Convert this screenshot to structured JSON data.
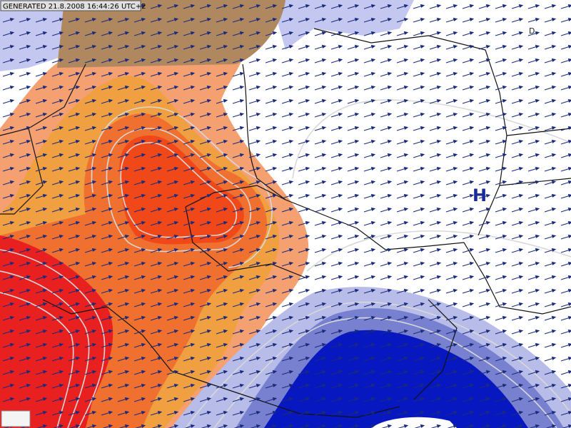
{
  "header": {
    "generated": "GENERATED 21.8.2008 16:44:26 UTC+2"
  },
  "map": {
    "pressure_labels": [
      {
        "label": "H"
      }
    ],
    "corner_label": "D"
  }
}
